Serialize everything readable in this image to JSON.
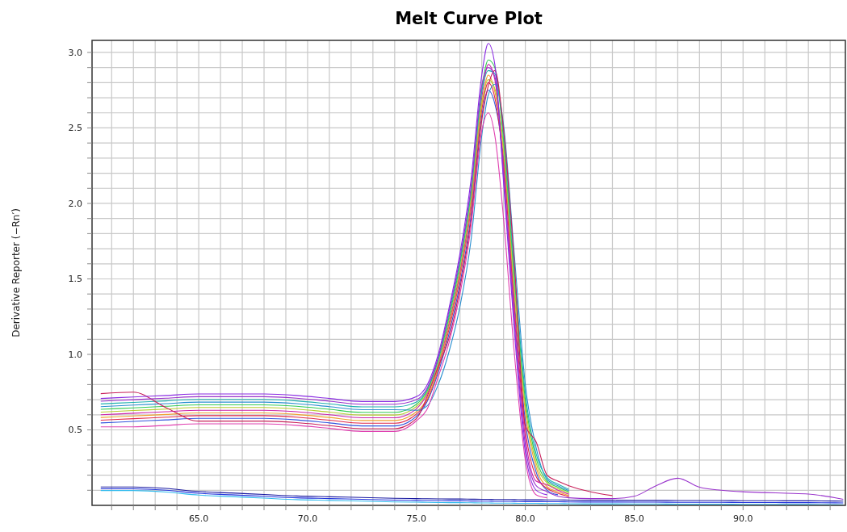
{
  "chart_data": {
    "type": "line",
    "title": "Melt Curve Plot",
    "ylabel": "Derivative Reporter (−Rn′)",
    "grid": true,
    "xlim": [
      60.1,
      94.7
    ],
    "ylim": [
      0,
      3.08
    ],
    "xticks": [
      {
        "value": 61,
        "label": null
      },
      {
        "value": 62,
        "label": null
      },
      {
        "value": 63,
        "label": null
      },
      {
        "value": 64,
        "label": null
      },
      {
        "value": 65,
        "label": "65.0"
      },
      {
        "value": 66,
        "label": null
      },
      {
        "value": 67,
        "label": null
      },
      {
        "value": 68,
        "label": null
      },
      {
        "value": 69,
        "label": null
      },
      {
        "value": 70,
        "label": "70.0"
      },
      {
        "value": 71,
        "label": null
      },
      {
        "value": 72,
        "label": null
      },
      {
        "value": 73,
        "label": null
      },
      {
        "value": 74,
        "label": null
      },
      {
        "value": 75,
        "label": "75.0"
      },
      {
        "value": 76,
        "label": null
      },
      {
        "value": 77,
        "label": null
      },
      {
        "value": 78,
        "label": null
      },
      {
        "value": 79,
        "label": null
      },
      {
        "value": 80,
        "label": "80.0"
      },
      {
        "value": 81,
        "label": null
      },
      {
        "value": 82,
        "label": null
      },
      {
        "value": 83,
        "label": null
      },
      {
        "value": 84,
        "label": null
      },
      {
        "value": 85,
        "label": "85.0"
      },
      {
        "value": 86,
        "label": null
      },
      {
        "value": 87,
        "label": null
      },
      {
        "value": 88,
        "label": null
      },
      {
        "value": 89,
        "label": null
      },
      {
        "value": 90,
        "label": "90.0"
      },
      {
        "value": 91,
        "label": null
      },
      {
        "value": 92,
        "label": null
      },
      {
        "value": 93,
        "label": null
      },
      {
        "value": 94,
        "label": null
      }
    ],
    "yticks": [
      {
        "value": 0.1,
        "label": null
      },
      {
        "value": 0.2,
        "label": null
      },
      {
        "value": 0.3,
        "label": null
      },
      {
        "value": 0.4,
        "label": null
      },
      {
        "value": 0.5,
        "label": "0.5"
      },
      {
        "value": 0.6,
        "label": null
      },
      {
        "value": 0.7,
        "label": null
      },
      {
        "value": 0.8,
        "label": null
      },
      {
        "value": 0.9,
        "label": null
      },
      {
        "value": 1.0,
        "label": "1.0"
      },
      {
        "value": 1.1,
        "label": null
      },
      {
        "value": 1.2,
        "label": null
      },
      {
        "value": 1.3,
        "label": null
      },
      {
        "value": 1.4,
        "label": null
      },
      {
        "value": 1.5,
        "label": "1.5"
      },
      {
        "value": 1.6,
        "label": null
      },
      {
        "value": 1.7,
        "label": null
      },
      {
        "value": 1.8,
        "label": null
      },
      {
        "value": 1.9,
        "label": null
      },
      {
        "value": 2.0,
        "label": "2.0"
      },
      {
        "value": 2.1,
        "label": null
      },
      {
        "value": 2.2,
        "label": null
      },
      {
        "value": 2.3,
        "label": null
      },
      {
        "value": 2.4,
        "label": null
      },
      {
        "value": 2.5,
        "label": "2.5"
      },
      {
        "value": 2.6,
        "label": null
      },
      {
        "value": 2.7,
        "label": null
      },
      {
        "value": 2.8,
        "label": null
      },
      {
        "value": 2.9,
        "label": null
      },
      {
        "value": 3.0,
        "label": "3.0"
      }
    ],
    "x": [
      60.5,
      62,
      63.5,
      65,
      66.5,
      68,
      69.5,
      71,
      72.5,
      74,
      75,
      75.5,
      76,
      76.5,
      77,
      77.5,
      78,
      78.3,
      78.6,
      79,
      79.5,
      80,
      80.5,
      81,
      81.5,
      82,
      83,
      84,
      85,
      86,
      87,
      88,
      89,
      90,
      91,
      92,
      93,
      94.6
    ],
    "series": [
      {
        "color": "#33bbee",
        "values": [
          0.098,
          0.098,
          0.088,
          0.068,
          0.058,
          0.048,
          0.038,
          0.033,
          0.028,
          0.023,
          0.021,
          0.02,
          0.019,
          0.018,
          0.018,
          0.017,
          0.016,
          0.016,
          0.015,
          0.015,
          0.014,
          0.013,
          0.013,
          0.012,
          0.012,
          0.011,
          0.01,
          0.01,
          0.009,
          0.009,
          0.008,
          0.008,
          0.008,
          0.007,
          0.007,
          0.006,
          0.006,
          0.004
        ]
      },
      {
        "color": "#2233dd",
        "values": [
          0.11,
          0.11,
          0.1,
          0.08,
          0.07,
          0.06,
          0.05,
          0.045,
          0.04,
          0.035,
          0.033,
          0.032,
          0.031,
          0.03,
          0.03,
          0.029,
          0.028,
          0.028,
          0.027,
          0.027,
          0.026,
          0.025,
          0.025,
          0.024,
          0.024,
          0.023,
          0.022,
          0.022,
          0.021,
          0.021,
          0.02,
          0.02,
          0.02,
          0.019,
          0.019,
          0.018,
          0.018,
          0.016
        ]
      },
      {
        "color": "#1a1aa0",
        "values": [
          0.122,
          0.122,
          0.112,
          0.092,
          0.082,
          0.072,
          0.062,
          0.057,
          0.052,
          0.047,
          0.045,
          0.044,
          0.043,
          0.042,
          0.042,
          0.041,
          0.04,
          0.04,
          0.039,
          0.039,
          0.038,
          0.037,
          0.037,
          0.036,
          0.036,
          0.035,
          0.034,
          0.034,
          0.033,
          0.033,
          0.032,
          0.032,
          0.032,
          0.031,
          0.031,
          0.03,
          0.03,
          0.028
        ]
      },
      {
        "color": "#3355dd",
        "values": [
          0.546,
          0.556,
          0.566,
          0.576,
          0.576,
          0.576,
          0.566,
          0.546,
          0.526,
          0.526,
          0.59,
          0.69,
          0.88,
          1.14,
          1.47,
          1.91,
          2.58,
          2.75,
          2.66,
          2.3,
          1.35,
          0.56,
          0.22,
          0.1,
          0.07,
          null,
          null,
          null,
          null,
          null,
          null,
          null,
          null,
          null,
          null,
          null,
          null,
          null
        ]
      },
      {
        "color": "#e0284a",
        "values": [
          0.564,
          0.574,
          0.584,
          0.594,
          0.594,
          0.594,
          0.584,
          0.564,
          0.544,
          0.544,
          0.605,
          0.7,
          0.9,
          1.17,
          1.51,
          1.96,
          2.62,
          2.8,
          2.7,
          2.26,
          1.3,
          0.5,
          0.19,
          0.112,
          0.08,
          0.058,
          null,
          null,
          null,
          null,
          null,
          null,
          null,
          null,
          null,
          null,
          null,
          null
        ]
      },
      {
        "color": "#f0a030",
        "values": [
          0.582,
          0.592,
          0.602,
          0.612,
          0.612,
          0.612,
          0.602,
          0.582,
          0.562,
          0.562,
          0.62,
          0.71,
          0.91,
          1.19,
          1.53,
          1.98,
          2.65,
          2.85,
          2.74,
          2.34,
          1.4,
          0.62,
          0.25,
          0.124,
          0.09,
          0.066,
          null,
          null,
          null,
          null,
          null,
          null,
          null,
          null,
          null,
          null,
          null,
          null
        ]
      },
      {
        "color": "#cc22aa",
        "values": [
          0.6,
          0.61,
          0.62,
          0.63,
          0.63,
          0.63,
          0.62,
          0.6,
          0.58,
          0.58,
          0.64,
          0.74,
          0.93,
          1.21,
          1.55,
          2.0,
          2.7,
          2.92,
          2.82,
          2.22,
          1.25,
          0.45,
          0.16,
          0.136,
          0.1,
          0.074,
          null,
          null,
          null,
          null,
          null,
          null,
          null,
          null,
          null,
          null,
          null,
          null
        ]
      },
      {
        "color": "#b8cc30",
        "values": [
          0.618,
          0.628,
          0.638,
          0.648,
          0.648,
          0.648,
          0.638,
          0.618,
          0.598,
          0.598,
          0.655,
          0.75,
          0.94,
          1.23,
          1.57,
          2.02,
          2.67,
          2.82,
          2.76,
          2.38,
          1.45,
          0.66,
          0.28,
          0.148,
          0.11,
          0.082,
          null,
          null,
          null,
          null,
          null,
          null,
          null,
          null,
          null,
          null,
          null,
          null
        ]
      },
      {
        "color": "#33cc55",
        "values": [
          0.636,
          0.646,
          0.656,
          0.666,
          0.666,
          0.666,
          0.656,
          0.636,
          0.616,
          0.616,
          0.67,
          0.76,
          0.96,
          1.25,
          1.6,
          2.06,
          2.76,
          2.95,
          2.9,
          2.42,
          1.5,
          0.7,
          0.31,
          0.16,
          0.12,
          0.09,
          null,
          null,
          null,
          null,
          null,
          null,
          null,
          null,
          null,
          null,
          null,
          null
        ]
      },
      {
        "color": "#2a8fd0",
        "values": [
          0.654,
          0.664,
          0.674,
          0.684,
          0.684,
          0.684,
          0.674,
          0.654,
          0.634,
          0.634,
          0.63,
          0.66,
          0.8,
          1.02,
          1.32,
          1.75,
          2.45,
          2.72,
          2.79,
          2.52,
          1.65,
          0.8,
          0.38,
          0.172,
          0.13,
          0.098,
          null,
          null,
          null,
          null,
          null,
          null,
          null,
          null,
          null,
          null,
          null,
          null
        ]
      },
      {
        "color": "#20b0b0",
        "values": [
          0.672,
          0.682,
          0.692,
          0.702,
          0.702,
          0.702,
          0.692,
          0.672,
          0.652,
          0.652,
          0.685,
          0.77,
          0.97,
          1.27,
          1.62,
          2.08,
          2.74,
          2.88,
          2.86,
          2.46,
          1.55,
          0.74,
          0.34,
          0.184,
          0.14,
          0.106,
          null,
          null,
          null,
          null,
          null,
          null,
          null,
          null,
          null,
          null,
          null,
          null
        ]
      },
      {
        "color": "#c8205a",
        "values": [
          0.74,
          0.75,
          0.647,
          0.558,
          0.558,
          0.558,
          0.548,
          0.528,
          0.508,
          0.508,
          0.575,
          0.725,
          0.92,
          1.11,
          1.44,
          1.88,
          2.55,
          2.78,
          2.88,
          2.49,
          1.6,
          0.53,
          0.42,
          0.2,
          0.16,
          0.13,
          0.09,
          0.065,
          null,
          null,
          null,
          null,
          null,
          null,
          null,
          null,
          null,
          null
        ]
      },
      {
        "color": "#9933cc",
        "values": [
          0.69,
          0.7,
          0.71,
          0.72,
          0.72,
          0.72,
          0.71,
          0.69,
          0.67,
          0.67,
          0.7,
          0.78,
          0.98,
          1.29,
          1.64,
          2.1,
          2.78,
          2.9,
          2.84,
          2.18,
          1.2,
          0.4,
          0.13,
          0.09,
          0.06,
          0.05,
          0.045,
          0.045,
          0.06,
          0.13,
          0.18,
          0.12,
          0.1,
          0.09,
          0.085,
          0.08,
          0.075,
          0.04
        ]
      },
      {
        "color": "#8a2be2",
        "values": [
          0.708,
          0.718,
          0.728,
          0.738,
          0.738,
          0.738,
          0.728,
          0.708,
          0.688,
          0.688,
          0.72,
          0.8,
          1.0,
          1.31,
          1.67,
          2.15,
          2.85,
          3.06,
          2.92,
          2.14,
          1.15,
          0.35,
          0.1,
          0.07,
          null,
          null,
          null,
          null,
          null,
          null,
          null,
          null,
          null,
          null,
          null,
          null,
          null,
          null
        ]
      },
      {
        "color": "#e040b0",
        "values": [
          0.52,
          0.52,
          0.53,
          0.54,
          0.54,
          0.54,
          0.53,
          0.51,
          0.49,
          0.49,
          0.56,
          0.64,
          0.85,
          1.08,
          1.4,
          1.84,
          2.48,
          2.6,
          2.45,
          1.9,
          1.0,
          0.3,
          0.07,
          0.05,
          null,
          null,
          null,
          null,
          null,
          null,
          null,
          null,
          null,
          null,
          null,
          null,
          null,
          null
        ]
      }
    ]
  }
}
